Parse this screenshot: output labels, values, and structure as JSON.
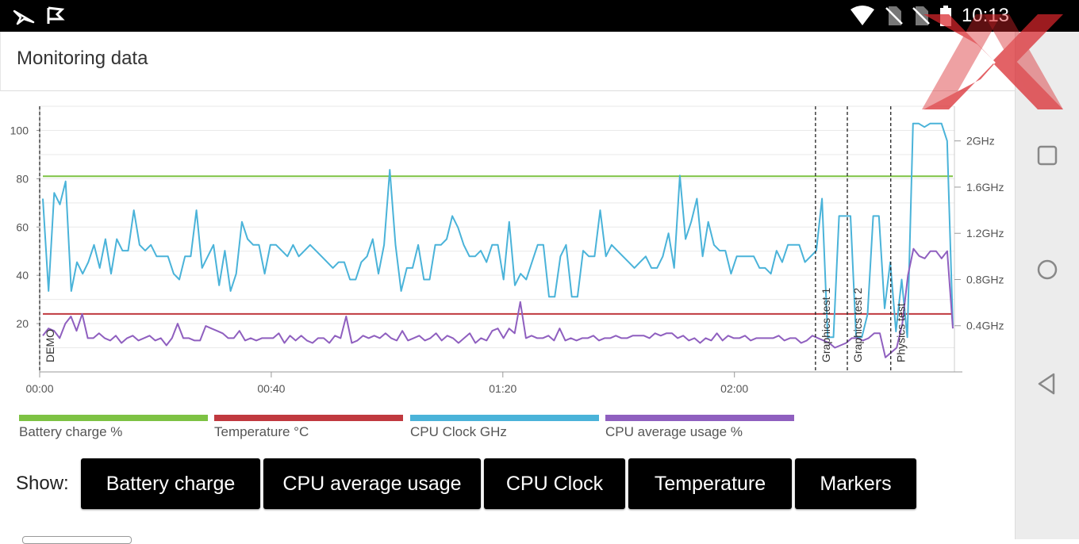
{
  "status_bar": {
    "time": "10:13",
    "icons": [
      "app-icon-arrow",
      "app-icon-checkflag",
      "wifi-icon",
      "no-sim-icon",
      "no-sim-icon",
      "battery-icon"
    ]
  },
  "header": {
    "title": "Monitoring data"
  },
  "watermark": "XX",
  "chart_data": {
    "type": "line",
    "x_ticks": [
      "00:00",
      "00:40",
      "01:20",
      "02:00"
    ],
    "y_left_ticks": [
      20,
      40,
      60,
      80,
      100
    ],
    "y_right_ticks": [
      "0.4GHz",
      "0.8GHz",
      "1.2GHz",
      "1.6GHz",
      "2GHz"
    ],
    "markers": [
      {
        "label": "DEMO",
        "t": 0
      },
      {
        "label": "Graphics test 1",
        "t": 134
      },
      {
        "label": "Graphics test 2",
        "t": 139.5
      },
      {
        "label": "Physics test",
        "t": 147
      }
    ],
    "series": [
      {
        "name": "Battery charge %",
        "color": "#7dc243",
        "values": [
          81,
          81,
          81,
          81,
          81,
          81,
          81,
          81,
          81,
          81,
          81,
          81,
          81,
          81,
          81,
          81,
          81,
          81,
          81,
          81,
          81,
          81,
          81,
          81,
          81,
          81,
          81,
          81,
          81,
          81,
          81,
          81,
          81,
          81,
          81,
          81,
          81,
          81,
          81,
          81,
          81,
          81,
          81,
          81,
          81,
          81,
          81,
          81,
          81,
          81,
          81,
          81,
          81,
          81,
          81,
          81,
          81,
          81,
          81,
          81,
          81,
          81,
          81,
          81,
          81,
          81,
          81,
          81,
          81,
          81,
          81,
          81,
          81,
          81,
          81,
          81,
          81,
          81,
          81,
          81,
          81,
          81,
          81,
          81,
          81,
          81,
          81,
          81,
          81,
          81,
          81,
          81,
          81,
          81,
          81,
          81,
          81,
          81,
          81,
          81,
          81,
          81,
          81,
          81,
          81,
          81,
          81,
          81,
          81,
          81,
          81,
          81,
          81,
          81,
          81,
          81,
          81,
          81,
          81,
          81,
          81,
          81,
          81,
          81,
          81,
          81,
          81,
          81,
          81,
          81,
          81,
          81,
          81,
          81,
          81,
          81,
          81,
          81,
          81,
          81,
          81,
          81,
          81,
          81,
          81,
          81,
          81,
          81,
          81,
          81,
          81,
          81,
          81,
          81,
          81,
          81,
          81,
          81
        ]
      },
      {
        "name": "Temperature °C",
        "color": "#c0393f",
        "values": [
          24,
          24,
          24,
          24,
          24,
          24,
          24,
          24,
          24,
          24,
          24,
          24,
          24,
          24,
          24,
          24,
          24,
          24,
          24,
          24,
          24,
          24,
          24,
          24,
          24,
          24,
          24,
          24,
          24,
          24,
          24,
          24,
          24,
          24,
          24,
          24,
          24,
          24,
          24,
          24,
          24,
          24,
          24,
          24,
          24,
          24,
          24,
          24,
          24,
          24,
          24,
          24,
          24,
          24,
          24,
          24,
          24,
          24,
          24,
          24,
          24,
          24,
          24,
          24,
          24,
          24,
          24,
          24,
          24,
          24,
          24,
          24,
          24,
          24,
          24,
          24,
          24,
          24,
          24,
          24,
          24,
          24,
          24,
          24,
          24,
          24,
          24,
          24,
          24,
          24,
          24,
          24,
          24,
          24,
          24,
          24,
          24,
          24,
          24,
          24,
          24,
          24,
          24,
          24,
          24,
          24,
          24,
          24,
          24,
          24,
          24,
          24,
          24,
          24,
          24,
          24,
          24,
          24,
          24,
          24,
          24,
          24,
          24,
          24,
          24,
          24,
          24,
          24,
          24,
          24,
          24,
          24,
          24,
          24,
          24,
          24,
          24,
          24,
          24,
          24,
          24,
          24,
          24,
          24,
          24,
          24,
          24,
          24,
          24,
          24,
          24,
          24,
          24,
          24,
          24,
          24,
          24,
          24
        ]
      },
      {
        "name": "CPU Clock GHz",
        "color": "#4ab3d9",
        "values": [
          1.5,
          0.7,
          1.55,
          1.45,
          1.65,
          0.7,
          0.95,
          0.85,
          0.95,
          1.1,
          0.9,
          1.15,
          0.85,
          1.15,
          1.05,
          1.05,
          1.4,
          1.1,
          1.05,
          1.1,
          1.0,
          1.0,
          1.0,
          0.85,
          0.8,
          1.0,
          1.0,
          1.4,
          0.9,
          1.0,
          1.1,
          0.75,
          1.05,
          0.7,
          0.85,
          1.3,
          1.15,
          1.1,
          1.1,
          0.85,
          1.1,
          1.1,
          1.05,
          1.0,
          1.1,
          1.0,
          1.05,
          1.1,
          1.05,
          1.0,
          0.95,
          0.9,
          0.95,
          0.95,
          0.8,
          0.8,
          0.95,
          1.0,
          1.15,
          0.85,
          1.1,
          1.75,
          1.1,
          0.7,
          0.9,
          0.9,
          1.1,
          0.8,
          0.8,
          1.1,
          1.1,
          1.15,
          1.35,
          1.25,
          1.1,
          1.0,
          1.0,
          1.05,
          0.95,
          1.1,
          1.1,
          0.8,
          1.3,
          0.75,
          0.85,
          0.8,
          0.95,
          1.1,
          1.1,
          0.65,
          0.65,
          1.0,
          1.1,
          0.65,
          0.65,
          1.05,
          1.0,
          1.0,
          1.4,
          1.0,
          1.1,
          1.05,
          1.0,
          0.95,
          0.9,
          0.95,
          1.0,
          0.9,
          0.9,
          1.0,
          1.2,
          0.9,
          1.7,
          1.15,
          1.3,
          1.5,
          1.0,
          1.3,
          1.1,
          1.05,
          1.05,
          0.85,
          1.0,
          1.0,
          1.0,
          1.0,
          0.9,
          0.9,
          0.85,
          1.05,
          0.95,
          1.1,
          1.1,
          1.1,
          0.95,
          1.0,
          1.05,
          1.5,
          0.3,
          0.3,
          1.35,
          1.35,
          1.35,
          0.3,
          0.3,
          0.5,
          1.35,
          1.35,
          0.55,
          0.95,
          0.35,
          0.8,
          0.3,
          2.15,
          2.15,
          2.12,
          2.15,
          2.15,
          2.15,
          2.0,
          0.4
        ]
      },
      {
        "name": "CPU average usage %",
        "color": "#8f5fbf",
        "values": [
          15,
          18,
          17,
          14,
          20,
          23,
          17,
          24,
          14,
          14,
          16,
          14,
          13,
          15,
          12,
          14,
          15,
          13,
          14,
          15,
          13,
          14,
          11,
          14,
          20,
          14,
          14,
          13,
          13,
          19,
          18,
          17,
          16,
          14,
          14,
          17,
          13,
          14,
          13,
          14,
          14,
          14,
          16,
          12,
          15,
          13,
          15,
          13,
          12,
          14,
          14,
          12,
          15,
          14,
          23,
          12,
          13,
          15,
          14,
          15,
          14,
          16,
          14,
          13,
          17,
          13,
          14,
          15,
          13,
          14,
          16,
          13,
          15,
          14,
          12,
          14,
          16,
          12,
          14,
          13,
          17,
          18,
          14,
          18,
          16,
          29,
          14,
          15,
          14,
          14,
          15,
          13,
          18,
          13,
          14,
          13,
          14,
          14,
          15,
          13,
          14,
          14,
          15,
          14,
          14,
          15,
          15,
          15,
          14,
          16,
          15,
          16,
          16,
          14,
          15,
          13,
          14,
          12,
          14,
          13,
          16,
          13,
          15,
          14,
          14,
          15,
          13,
          14,
          14,
          14,
          14,
          15,
          13,
          14,
          14,
          12,
          13,
          15,
          14,
          13,
          12,
          10,
          11,
          12,
          14,
          14,
          13,
          14,
          16,
          16,
          6,
          8,
          10,
          20,
          40,
          51,
          48,
          47,
          50,
          50,
          47,
          50,
          18
        ]
      }
    ],
    "x_max_minutes": 158
  },
  "legend": [
    {
      "label": "Battery charge %",
      "color": "#7dc243"
    },
    {
      "label": "Temperature °C",
      "color": "#c0393f"
    },
    {
      "label": "CPU Clock GHz",
      "color": "#4ab3d9"
    },
    {
      "label": "CPU average usage %",
      "color": "#8f5fbf"
    }
  ],
  "show": {
    "label": "Show:",
    "buttons": [
      "Battery charge",
      "CPU average usage",
      "CPU Clock",
      "Temperature",
      "Markers"
    ]
  }
}
